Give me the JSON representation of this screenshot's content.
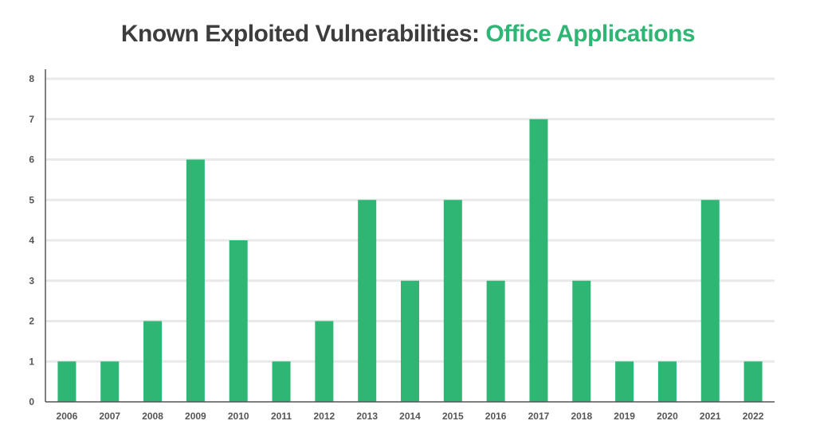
{
  "chart_data": {
    "type": "bar",
    "title_prefix": "Known Exploited Vulnerabilities:",
    "title_highlight": "Office Applications",
    "categories": [
      "2006",
      "2007",
      "2008",
      "2009",
      "2010",
      "2011",
      "2012",
      "2013",
      "2014",
      "2015",
      "2016",
      "2017",
      "2018",
      "2019",
      "2020",
      "2021",
      "2022"
    ],
    "values": [
      1,
      1,
      2,
      6,
      4,
      1,
      2,
      5,
      3,
      5,
      3,
      7,
      3,
      1,
      1,
      5,
      1
    ],
    "ylim": [
      0,
      8
    ],
    "yticks": [
      0,
      1,
      2,
      3,
      4,
      5,
      6,
      7,
      8
    ],
    "grid": true,
    "bar_color": "#2fb574",
    "grid_color": "#e9e9e9",
    "axis_color": "#555555",
    "title_color": "#3d3d3d",
    "highlight_color": "#2fb574"
  }
}
